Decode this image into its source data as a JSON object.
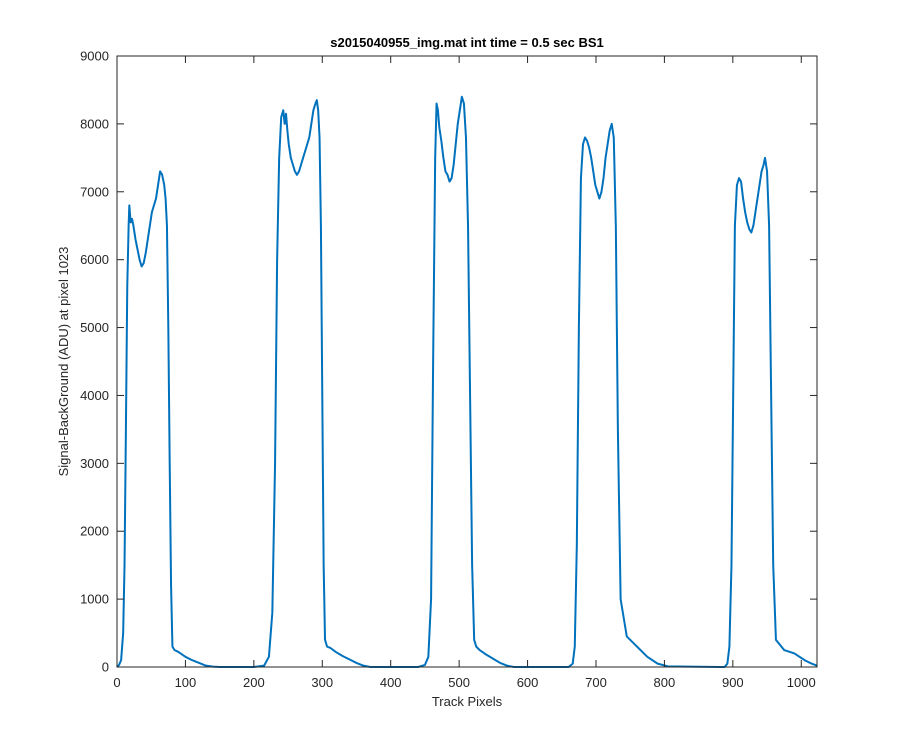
{
  "chart_data": {
    "type": "line",
    "title": "s2015040955_img.mat int time = 0.5 sec   BS1",
    "xlabel": "Track Pixels",
    "ylabel": "Signal-BackGround (ADU) at pixel 1023",
    "xlim": [
      0,
      1023
    ],
    "ylim": [
      0,
      9000
    ],
    "xticks": [
      0,
      100,
      200,
      300,
      400,
      500,
      600,
      700,
      800,
      900,
      1000
    ],
    "yticks": [
      0,
      1000,
      2000,
      3000,
      4000,
      5000,
      6000,
      7000,
      8000,
      9000
    ],
    "xtick_labels": [
      "0",
      "100",
      "200",
      "300",
      "400",
      "500",
      "600",
      "700",
      "800",
      "900",
      "1000"
    ],
    "ytick_labels": [
      "0",
      "1000",
      "2000",
      "3000",
      "4000",
      "5000",
      "6000",
      "7000",
      "8000",
      "9000"
    ],
    "grid": false,
    "line_color": "#0072BD",
    "series": [
      {
        "x": [
          0,
          3,
          6,
          9,
          11,
          13,
          15,
          17,
          18,
          20,
          22,
          24,
          27,
          30,
          33,
          36,
          39,
          42,
          45,
          48,
          51,
          54,
          57,
          60,
          63,
          66,
          69,
          71,
          73,
          75,
          77,
          79,
          81,
          84,
          90,
          100,
          110,
          120,
          130,
          140,
          150,
          160,
          200,
          215,
          222,
          227,
          231,
          234,
          237,
          240,
          243,
          245,
          247,
          249,
          251,
          254,
          257,
          260,
          263,
          266,
          269,
          272,
          275,
          278,
          281,
          284,
          287,
          290,
          292,
          294,
          296,
          298,
          300,
          302,
          304,
          307,
          312,
          320,
          330,
          340,
          350,
          360,
          370,
          380,
          440,
          450,
          455,
          459,
          462,
          465,
          467,
          469,
          471,
          474,
          477,
          480,
          483,
          486,
          489,
          492,
          495,
          498,
          501,
          504,
          507,
          510,
          513,
          516,
          519,
          522,
          525,
          530,
          540,
          550,
          560,
          570,
          580,
          590,
          600,
          660,
          666,
          669,
          672,
          675,
          678,
          681,
          684,
          687,
          690,
          693,
          696,
          699,
          702,
          705,
          708,
          711,
          714,
          717,
          720,
          723,
          726,
          729,
          732,
          736,
          745,
          760,
          775,
          790,
          805,
          880,
          888,
          892,
          895,
          898,
          901,
          903,
          906,
          909,
          912,
          915,
          918,
          921,
          924,
          927,
          930,
          933,
          936,
          939,
          942,
          945,
          947,
          950,
          953,
          956,
          959,
          963,
          975,
          990,
          1005,
          1015,
          1023
        ],
        "y": [
          0,
          30,
          100,
          500,
          1500,
          3500,
          5600,
          6500,
          6800,
          6550,
          6600,
          6500,
          6300,
          6150,
          6000,
          5900,
          5950,
          6100,
          6300,
          6500,
          6700,
          6800,
          6900,
          7100,
          7300,
          7250,
          7100,
          6900,
          6500,
          5000,
          3000,
          1200,
          300,
          250,
          220,
          150,
          100,
          60,
          20,
          5,
          0,
          0,
          0,
          20,
          150,
          800,
          3000,
          6000,
          7500,
          8100,
          8200,
          8000,
          8150,
          7900,
          7700,
          7500,
          7400,
          7300,
          7250,
          7300,
          7400,
          7500,
          7600,
          7700,
          7800,
          8000,
          8200,
          8300,
          8350,
          8200,
          7800,
          6500,
          4000,
          1500,
          400,
          300,
          280,
          220,
          160,
          110,
          60,
          20,
          0,
          0,
          0,
          30,
          150,
          1000,
          4500,
          7500,
          8300,
          8200,
          7950,
          7750,
          7500,
          7300,
          7250,
          7150,
          7200,
          7400,
          7700,
          8000,
          8200,
          8400,
          8300,
          7800,
          6500,
          4000,
          1500,
          400,
          300,
          250,
          180,
          120,
          60,
          20,
          0,
          0,
          0,
          0,
          50,
          300,
          1800,
          5000,
          7200,
          7700,
          7800,
          7750,
          7650,
          7500,
          7300,
          7100,
          7000,
          6900,
          7000,
          7200,
          7500,
          7700,
          7900,
          8000,
          7800,
          6500,
          3500,
          1000,
          450,
          300,
          150,
          50,
          10,
          0,
          0,
          50,
          300,
          1500,
          4500,
          6500,
          7100,
          7200,
          7150,
          6900,
          6700,
          6550,
          6450,
          6400,
          6500,
          6700,
          6900,
          7100,
          7300,
          7400,
          7500,
          7300,
          6500,
          4000,
          1500,
          400,
          250,
          200,
          100,
          50,
          20
        ]
      }
    ]
  }
}
